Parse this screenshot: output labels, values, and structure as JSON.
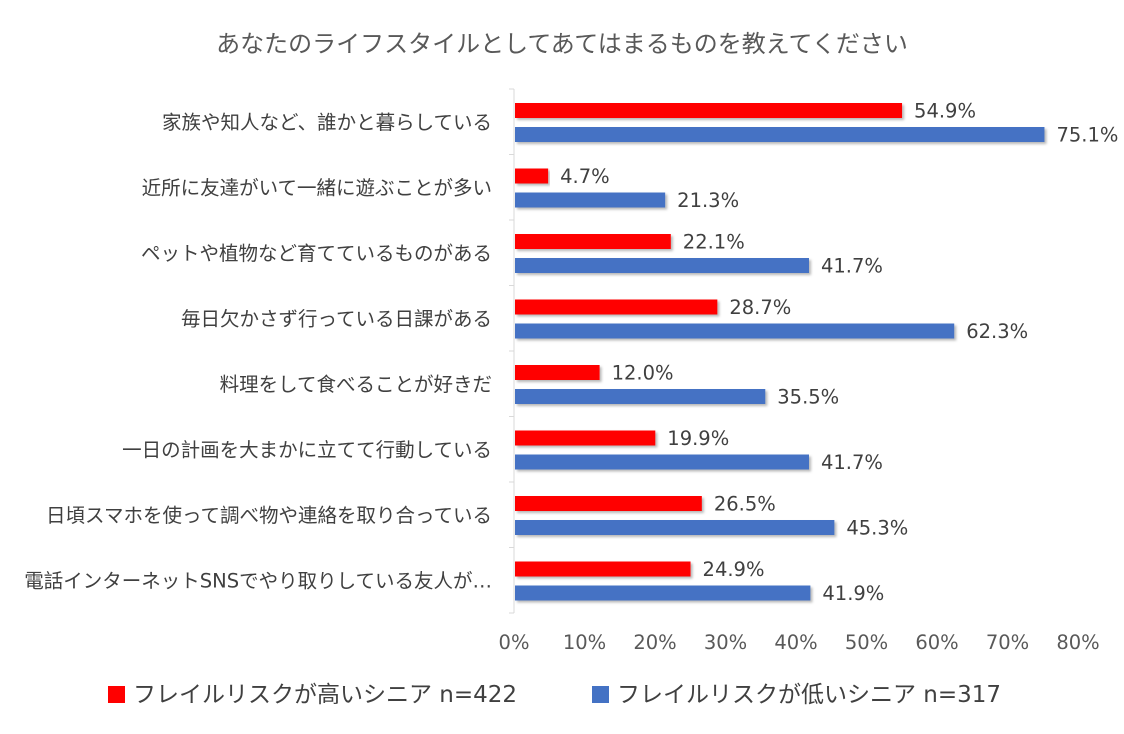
{
  "chart_data": {
    "type": "bar",
    "orientation": "horizontal",
    "title": "あなたのライフスタイルとしてあてはまるものを教えてください",
    "categories": [
      "家族や知人など、誰かと暮らしている",
      "近所に友達がいて一緒に遊ぶことが多い",
      "ペットや植物など育てているものがある",
      "毎日欠かさず行っている日課がある",
      "料理をして食べることが好きだ",
      "一日の計画を大まかに立てて行動している",
      "日頃スマホを使って調べ物や連絡を取り合っている",
      "電話インターネットSNSでやり取りしている友人が…"
    ],
    "series": [
      {
        "name": "フレイルリスクが高いシニア n=422",
        "color": "#ff0000",
        "values": [
          54.9,
          4.7,
          22.1,
          28.7,
          12.0,
          19.9,
          26.5,
          24.9
        ]
      },
      {
        "name": "フレイルリスクが低いシニア n=317",
        "color": "#4472c4",
        "values": [
          75.1,
          21.3,
          41.7,
          62.3,
          35.5,
          41.7,
          45.3,
          41.9
        ]
      }
    ],
    "xlim": [
      0,
      80
    ],
    "xticks": [
      "0%",
      "10%",
      "20%",
      "30%",
      "40%",
      "50%",
      "60%",
      "70%",
      "80%"
    ],
    "value_suffix": "%",
    "grid": false,
    "legend_position": "bottom"
  }
}
